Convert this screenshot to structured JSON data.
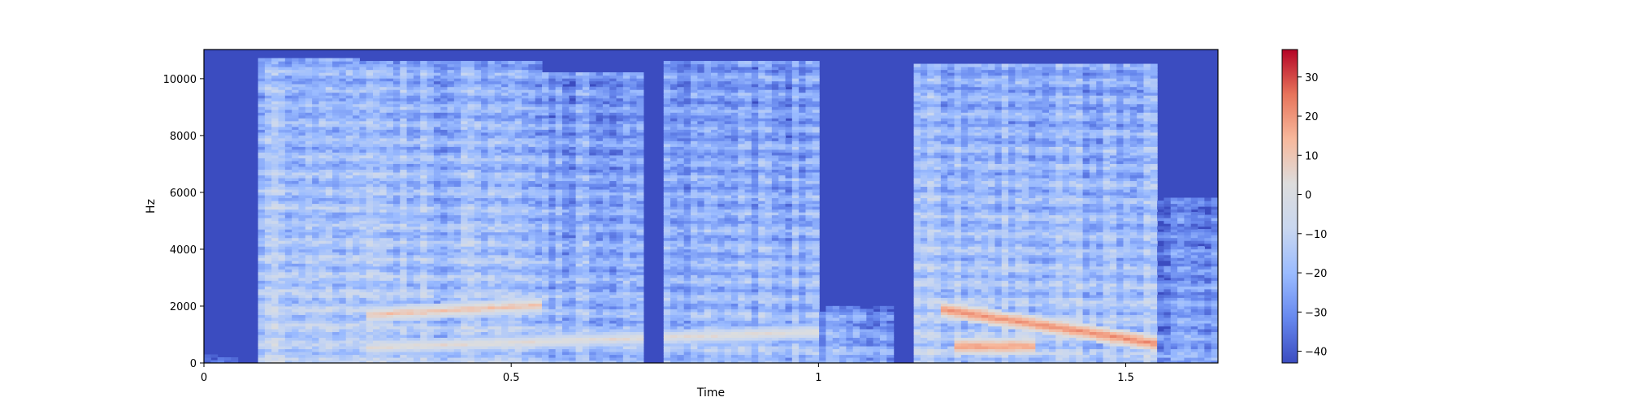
{
  "chart_data": {
    "type": "heatmap",
    "title": "",
    "xlabel": "Time",
    "ylabel": "Hz",
    "xlim": [
      0,
      1.65
    ],
    "ylim": [
      0,
      11025
    ],
    "x_ticks": [
      0,
      0.5,
      1,
      1.5
    ],
    "x_tick_labels": [
      "0",
      "0.5",
      "1",
      "1.5"
    ],
    "y_ticks": [
      0,
      2000,
      4000,
      6000,
      8000,
      10000
    ],
    "y_tick_labels": [
      "0",
      "2000",
      "4000",
      "6000",
      "8000",
      "10000"
    ],
    "colormap": "coolwarm",
    "colormap_stops": [
      "#3b4cc0",
      "#6788ee",
      "#9abbff",
      "#c9d7f0",
      "#dddddd",
      "#f7b89c",
      "#e7745b",
      "#b40426"
    ],
    "colorbar": {
      "range": [
        -43,
        37
      ],
      "ticks": [
        30,
        20,
        10,
        0,
        -10,
        -20,
        -30,
        -40
      ],
      "tick_labels": [
        "30",
        "20",
        "10",
        "0",
        "−10",
        "−20",
        "−30",
        "−40"
      ]
    },
    "regions": [
      {
        "t_start": 0.0,
        "t_end": 0.06,
        "f_max": 300,
        "level_db": -43
      },
      {
        "t_start": 0.09,
        "t_end": 0.25,
        "f_max": 10700,
        "level_db": -15
      },
      {
        "t_start": 0.25,
        "t_end": 0.55,
        "f_max": 10600,
        "level_db": -18
      },
      {
        "t_start": 0.55,
        "t_end": 0.72,
        "f_max": 10200,
        "level_db": -22
      },
      {
        "t_start": 0.75,
        "t_end": 1.0,
        "f_max": 10600,
        "level_db": -22
      },
      {
        "t_start": 1.0,
        "t_end": 1.12,
        "f_max": 2000,
        "level_db": -25
      },
      {
        "t_start": 1.16,
        "t_end": 1.55,
        "f_max": 10500,
        "level_db": -18
      },
      {
        "t_start": 1.55,
        "t_end": 1.65,
        "f_max": 5800,
        "level_db": -30
      }
    ],
    "harmonic_bands": [
      {
        "t_start": 0.26,
        "t_end": 0.55,
        "f_start": 1700,
        "f_end": 2050,
        "level_db": 12
      },
      {
        "t_start": 0.26,
        "t_end": 1.0,
        "f_start": 550,
        "f_end": 1100,
        "level_db": 5
      },
      {
        "t_start": 1.2,
        "t_end": 1.55,
        "f_start": 1900,
        "f_end": 700,
        "level_db": 22
      },
      {
        "t_start": 1.22,
        "t_end": 1.35,
        "f_start": 600,
        "f_end": 600,
        "level_db": 20
      }
    ]
  }
}
